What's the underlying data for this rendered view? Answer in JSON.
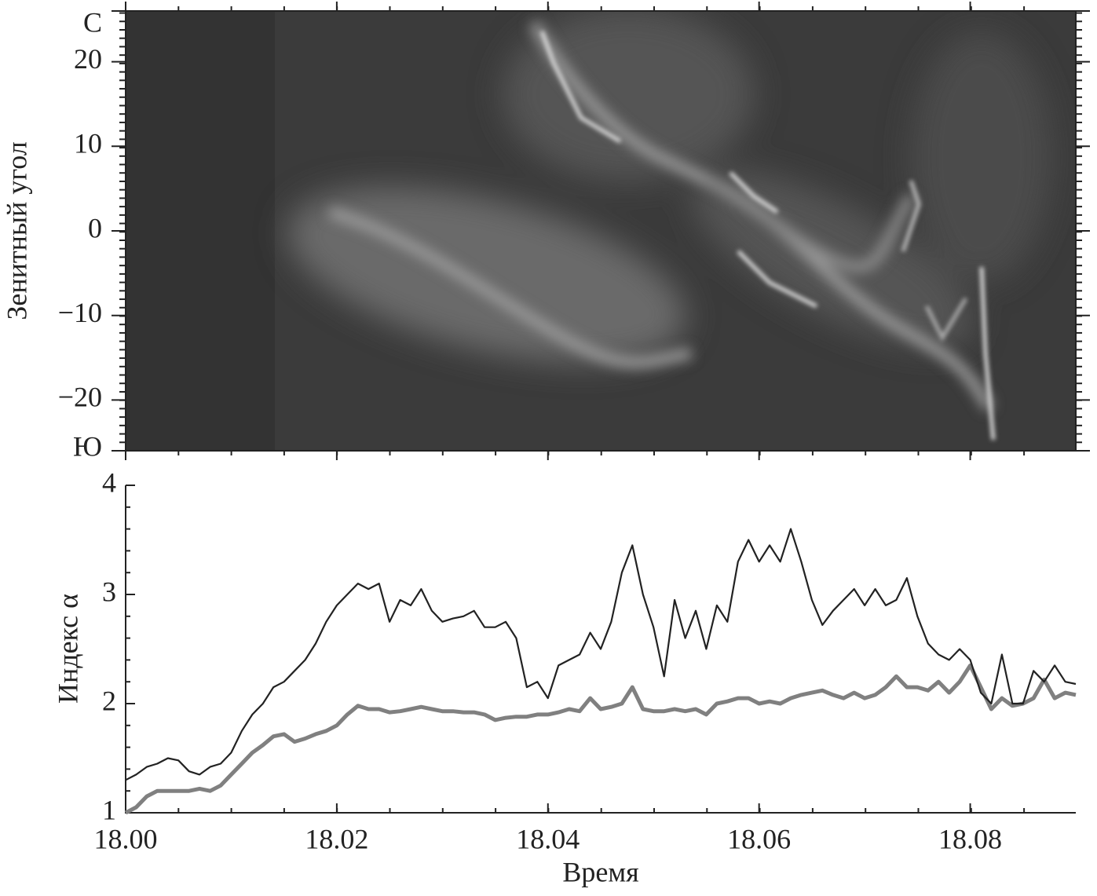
{
  "chart_data": [
    {
      "type": "keogram",
      "ylabel": "Зенитный угол",
      "ylim": [
        -26,
        26
      ],
      "yticks": [
        {
          "value": 26,
          "label": "С"
        },
        20,
        10,
        0,
        {
          "value": -10,
          "label": "−10"
        },
        {
          "value": -20,
          "label": "−20"
        },
        {
          "value": -26,
          "label": "Ю"
        }
      ],
      "xlim": [
        18,
        18.09
      ],
      "xticks": [
        18,
        18.02,
        18.04,
        18.06,
        18.08
      ]
    },
    {
      "type": "line",
      "xlabel": "Время",
      "ylabel": "Индекс α",
      "xlim": [
        18,
        18.09
      ],
      "xticks": [
        {
          "value": 18,
          "label": "18.00"
        },
        18.02,
        18.04,
        18.06,
        18.08
      ],
      "ylim": [
        1,
        4
      ],
      "yticks": [
        1,
        2,
        3,
        4
      ],
      "x": [
        18.0,
        18.001,
        18.002,
        18.003,
        18.004,
        18.005,
        18.006,
        18.007,
        18.008,
        18.009,
        18.01,
        18.011,
        18.012,
        18.013,
        18.014,
        18.015,
        18.016,
        18.017,
        18.018,
        18.019,
        18.02,
        18.021,
        18.022,
        18.023,
        18.024,
        18.025,
        18.026,
        18.027,
        18.028,
        18.029,
        18.03,
        18.031,
        18.032,
        18.033,
        18.034,
        18.035,
        18.036,
        18.037,
        18.038,
        18.039,
        18.04,
        18.041,
        18.042,
        18.043,
        18.044,
        18.045,
        18.046,
        18.047,
        18.048,
        18.049,
        18.05,
        18.051,
        18.052,
        18.053,
        18.054,
        18.055,
        18.056,
        18.057,
        18.058,
        18.059,
        18.06,
        18.061,
        18.062,
        18.063,
        18.064,
        18.065,
        18.066,
        18.067,
        18.068,
        18.069,
        18.07,
        18.071,
        18.072,
        18.073,
        18.074,
        18.075,
        18.076,
        18.077,
        18.078,
        18.079,
        18.08,
        18.081,
        18.082,
        18.083,
        18.084,
        18.085,
        18.086,
        18.087,
        18.088,
        18.089,
        18.09
      ],
      "series": [
        {
          "color": "#222222",
          "values": [
            1.3,
            1.35,
            1.42,
            1.45,
            1.5,
            1.48,
            1.38,
            1.35,
            1.42,
            1.45,
            1.55,
            1.75,
            1.9,
            2.0,
            2.15,
            2.2,
            2.3,
            2.4,
            2.55,
            2.75,
            2.9,
            3.0,
            3.1,
            3.05,
            3.1,
            2.75,
            2.95,
            2.9,
            3.05,
            2.85,
            2.75,
            2.78,
            2.8,
            2.85,
            2.7,
            2.7,
            2.75,
            2.6,
            2.15,
            2.2,
            2.05,
            2.35,
            2.4,
            2.45,
            2.65,
            2.5,
            2.75,
            3.2,
            3.45,
            3.0,
            2.7,
            2.25,
            2.95,
            2.6,
            2.85,
            2.5,
            2.9,
            2.75,
            3.3,
            3.5,
            3.3,
            3.45,
            3.3,
            3.6,
            3.3,
            2.95,
            2.72,
            2.85,
            2.95,
            3.05,
            2.9,
            3.05,
            2.9,
            2.95,
            3.15,
            2.8,
            2.55,
            2.45,
            2.4,
            2.5,
            2.4,
            2.1,
            2.0,
            2.45,
            2.0,
            2.0,
            2.3,
            2.2,
            2.35,
            2.2,
            2.18
          ]
        },
        {
          "color": "#808080",
          "values": [
            1.0,
            1.05,
            1.15,
            1.2,
            1.2,
            1.2,
            1.2,
            1.22,
            1.2,
            1.25,
            1.35,
            1.45,
            1.55,
            1.62,
            1.7,
            1.72,
            1.65,
            1.68,
            1.72,
            1.75,
            1.8,
            1.9,
            1.98,
            1.95,
            1.95,
            1.92,
            1.93,
            1.95,
            1.97,
            1.95,
            1.93,
            1.93,
            1.92,
            1.92,
            1.9,
            1.85,
            1.87,
            1.88,
            1.88,
            1.9,
            1.9,
            1.92,
            1.95,
            1.93,
            2.05,
            1.95,
            1.97,
            2.0,
            2.15,
            1.95,
            1.93,
            1.93,
            1.95,
            1.93,
            1.95,
            1.9,
            2.0,
            2.02,
            2.05,
            2.05,
            2.0,
            2.02,
            2.0,
            2.05,
            2.08,
            2.1,
            2.12,
            2.08,
            2.05,
            2.1,
            2.05,
            2.08,
            2.15,
            2.25,
            2.15,
            2.15,
            2.12,
            2.2,
            2.1,
            2.2,
            2.35,
            2.15,
            1.95,
            2.05,
            1.98,
            2.0,
            2.05,
            2.22,
            2.05,
            2.1,
            2.08
          ]
        }
      ]
    }
  ]
}
